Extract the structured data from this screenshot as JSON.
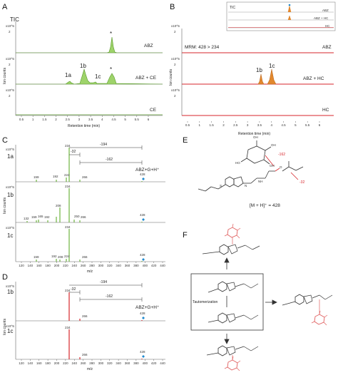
{
  "figure": {
    "panels": {
      "A": "A",
      "B": "B",
      "C": "C",
      "D": "D",
      "E": "E",
      "F": "F"
    },
    "panelA": {
      "rows": [
        {
          "label": "TIC",
          "trace": "ABZ",
          "scale": "x10^5",
          "tick": "2"
        },
        {
          "label": "",
          "trace": "ABZ + CE",
          "scale": "x10^5",
          "tick": "2"
        },
        {
          "label": "",
          "trace": "CE",
          "scale": "x10^5",
          "tick": "2"
        }
      ],
      "peaks": [
        "1a",
        "1b",
        "1c"
      ],
      "star": "*",
      "ylabel": "Ion counts",
      "xlabel": "Retention time (min)",
      "xticks": [
        "0.5",
        "1",
        "1.5",
        "2",
        "2.5",
        "3",
        "3.5",
        "4",
        "4.5",
        "5",
        "5.5",
        "6"
      ]
    },
    "panelB": {
      "mrm": "MRM: 428 > 234",
      "rows": [
        {
          "trace": "ABZ",
          "scale": "x10^5",
          "tick": "2"
        },
        {
          "trace": "ABZ + HC",
          "scale": "x10^5",
          "tick": "2"
        },
        {
          "trace": "HC",
          "scale": "x10^5",
          "tick": "2"
        }
      ],
      "peaks": [
        "1b",
        "1c"
      ],
      "inset": {
        "label": "TIC",
        "rows": [
          "ABZ",
          "ABZ + HC",
          "HC"
        ]
      },
      "ylabel": "Ion counts",
      "xlabel": "Retention time (min)",
      "xticks": [
        "0.5",
        "1",
        "1.5",
        "2",
        "2.5",
        "3",
        "3.5",
        "4",
        "4.5",
        "5",
        "5.5",
        "6"
      ]
    },
    "panelC": {
      "rows": [
        "1a",
        "1b",
        "1c"
      ],
      "scale": "x10^5",
      "ylabel": "Ion counts",
      "xlabel": "m/z",
      "formula": "ABZ+G+H⁺",
      "losses": {
        "a": "-194",
        "b": "-32",
        "c": "-162"
      },
      "peaks1a": [
        "159",
        "192",
        "224",
        "234",
        "266",
        "428"
      ],
      "peaks1b": [
        "132",
        "159",
        "165",
        "192",
        "208",
        "234",
        "250",
        "266",
        "428"
      ],
      "peaks1c": [
        "159",
        "192",
        "208",
        "224",
        "234",
        "266",
        "428"
      ],
      "xticks": [
        "120",
        "140",
        "160",
        "180",
        "200",
        "220",
        "240",
        "260",
        "280",
        "300",
        "320",
        "340",
        "360",
        "380",
        "400",
        "420",
        "440"
      ]
    },
    "panelD": {
      "rows": [
        "1b",
        "1c"
      ],
      "scale": "x10^5",
      "ylabel": "Ion counts",
      "xlabel": "m/z",
      "formula": "ABZ+G+H⁺",
      "losses": {
        "a": "-194",
        "b": "-32",
        "c": "-162"
      },
      "peaks1b": [
        "234",
        "266",
        "428"
      ],
      "peaks1c": [
        "234",
        "266",
        "428"
      ],
      "xticks": [
        "120",
        "140",
        "160",
        "180",
        "200",
        "220",
        "240",
        "260",
        "280",
        "300",
        "320",
        "340",
        "360",
        "380",
        "400",
        "420",
        "440"
      ]
    },
    "panelE": {
      "mz": "[M + H]⁺ = 428",
      "loss1": "-162",
      "loss2": "-32"
    },
    "panelF": {
      "center": "Tautomerization"
    }
  },
  "colors": {
    "green": "#6db33f",
    "red": "#d7262b",
    "orange": "#e2882e",
    "blue": "#1f8ad0",
    "pink": "#e06060"
  }
}
